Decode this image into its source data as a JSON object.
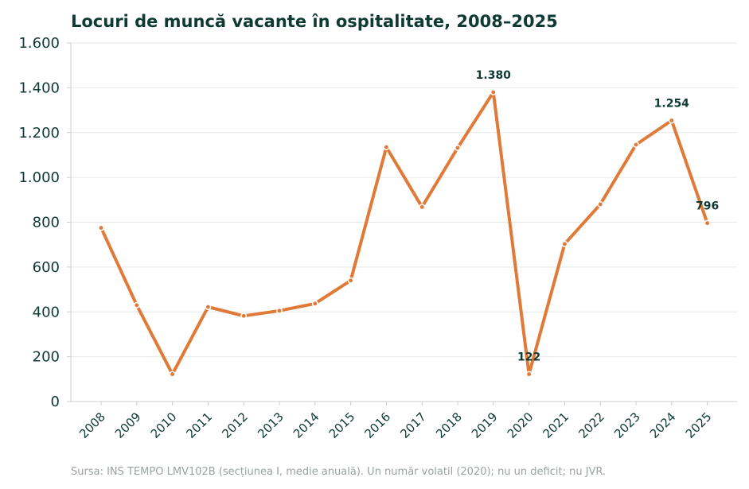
{
  "chart_data": {
    "type": "line",
    "title": "Locuri de muncă vacante în ospitalitate, 2008–2025",
    "xlabel": "",
    "ylabel": "",
    "source_note": "Sursa: INS TEMPO LMV102B (secțiunea I, medie anuală). Un număr volatil (2020); nu un deficit; nu JVR.",
    "x": [
      "2008",
      "2009",
      "2010",
      "2011",
      "2012",
      "2013",
      "2014",
      "2015",
      "2016",
      "2017",
      "2018",
      "2019",
      "2020",
      "2021",
      "2022",
      "2023",
      "2024",
      "2025"
    ],
    "series": [
      {
        "values": [
          775,
          430,
          122,
          422,
          382,
          405,
          437,
          540,
          1135,
          868,
          1132,
          1380,
          122,
          703,
          880,
          1146,
          1254,
          796
        ]
      }
    ],
    "ylim": [
      0,
      1600
    ],
    "yticks": [
      0,
      200,
      400,
      600,
      800,
      1000,
      1200,
      1400,
      1600
    ],
    "ytick_labels": [
      "0",
      "200",
      "400",
      "600",
      "800",
      "1.000",
      "1.200",
      "1.400",
      "1.600"
    ],
    "annotations": [
      {
        "x": "2019",
        "value": 1380,
        "label": "1.380",
        "position": "above"
      },
      {
        "x": "2020",
        "value": 122,
        "label": "122",
        "position": "above"
      },
      {
        "x": "2024",
        "value": 1254,
        "label": "1.254",
        "position": "above"
      },
      {
        "x": "2025",
        "value": 796,
        "label": "796",
        "position": "above"
      }
    ],
    "grid": "horizontal",
    "legend": "none",
    "colors": {
      "line": "#e07a38",
      "text": "#0f3a34",
      "grid": "#e6e9e8",
      "axis": "#c8cfcc",
      "source": "#9aa3a0"
    }
  }
}
